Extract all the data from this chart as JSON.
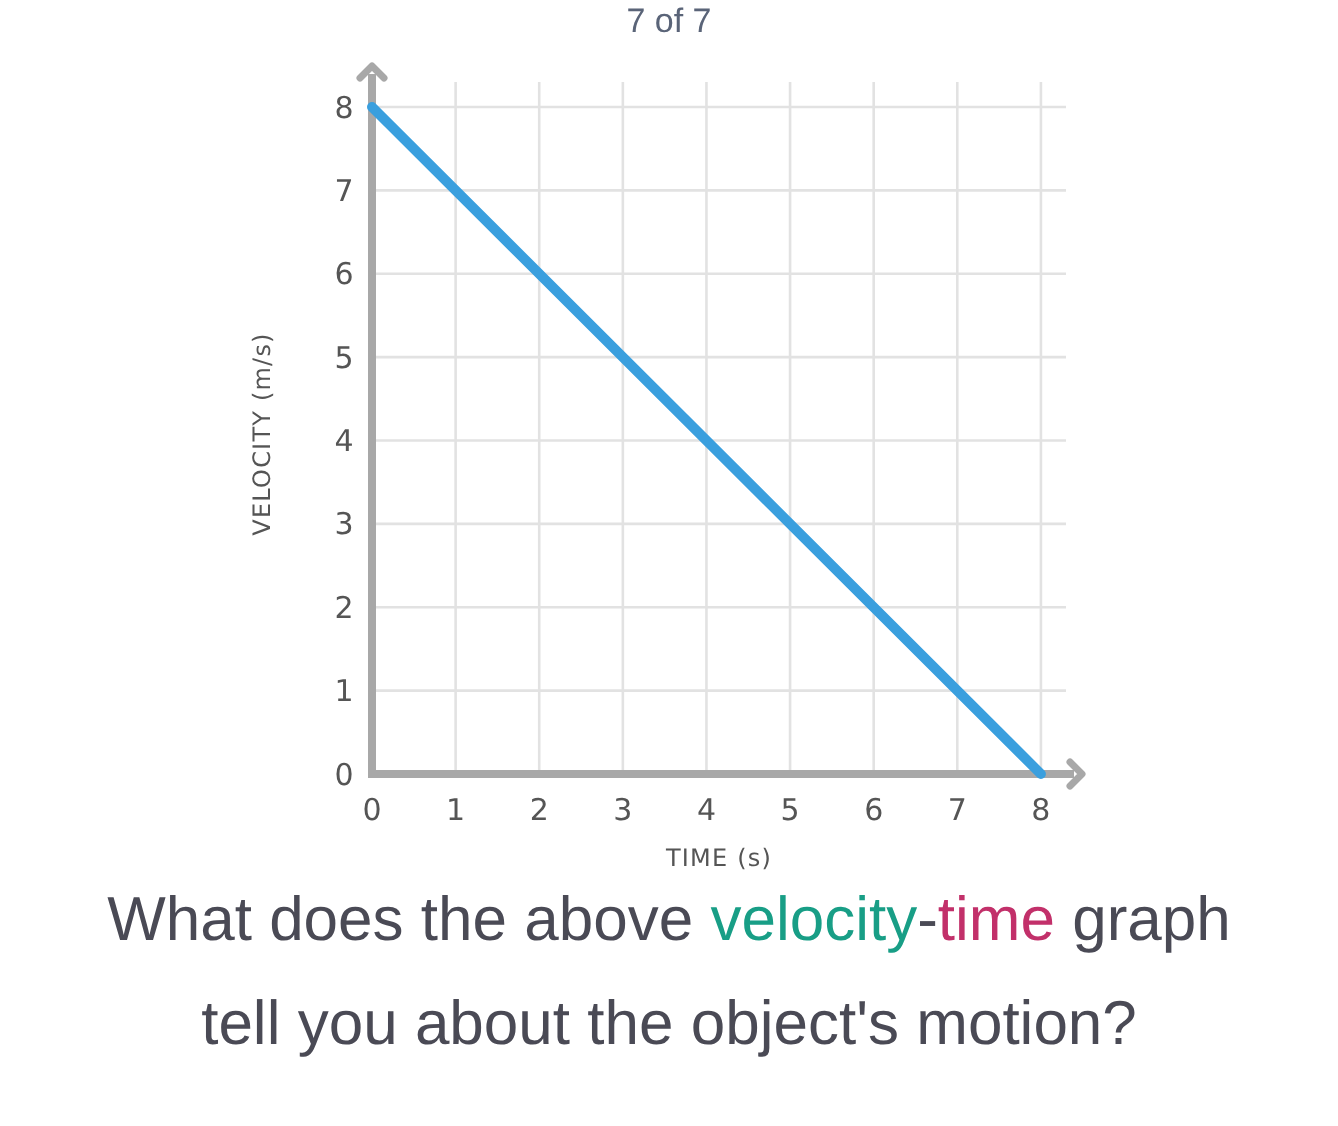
{
  "chart_data": {
    "type": "line",
    "title": "What does the above velocity-time graph tell you about the object's motion?",
    "annotations": [
      "7 of 7"
    ],
    "xlabel": "TIME (s)",
    "ylabel": "VELOCITY (m/s)",
    "series": [
      {
        "x": [
          0,
          8
        ],
        "values": [
          8,
          0
        ],
        "color": "#3a9fde"
      }
    ],
    "xlim": [
      0,
      8.3
    ],
    "ylim": [
      0,
      8.3
    ],
    "xticks": [
      0,
      1,
      2,
      3,
      4,
      5,
      6,
      7,
      8
    ],
    "yticks": [
      0,
      1,
      2,
      3,
      4,
      5,
      6,
      7,
      8
    ],
    "grid": true
  }
}
